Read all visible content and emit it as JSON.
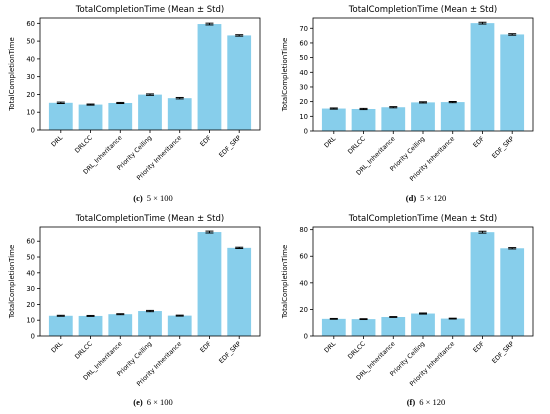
{
  "colors": {
    "bar": "#87ceeb",
    "error_bar": "#000000",
    "axis": "#000000",
    "background": "#ffffff"
  },
  "chart_data": [
    {
      "type": "bar",
      "title": "TotalCompletionTime (Mean ± Std)",
      "ylabel": "TotalCompletionTime",
      "xlabel": "",
      "caption_label": "(c)",
      "caption_text": "5 × 100",
      "categories": [
        "DRL",
        "DRLCC",
        "DRL_Inheritance",
        "Priority Ceiling",
        "Priority Inheritance",
        "EDF",
        "EDF_SRP"
      ],
      "values": [
        15.3,
        14.3,
        15.2,
        19.9,
        17.9,
        59.6,
        53.2
      ],
      "errors": [
        0.4,
        0.3,
        0.3,
        0.4,
        0.4,
        0.5,
        0.4
      ],
      "ylim": [
        0,
        63
      ],
      "yticks": [
        0,
        10,
        20,
        30,
        40,
        50,
        60
      ],
      "grid": false,
      "legend": false
    },
    {
      "type": "bar",
      "title": "TotalCompletionTime (Mean ± Std)",
      "ylabel": "TotalCompletionTime",
      "xlabel": "",
      "caption_label": "(d)",
      "caption_text": "5 × 120",
      "categories": [
        "DRL",
        "DRLCC",
        "DRL_Inheritance",
        "Priority Ceiling",
        "Priority Inheritance",
        "EDF",
        "EDF_SRP"
      ],
      "values": [
        15.3,
        15.0,
        16.2,
        19.5,
        19.7,
        73.5,
        65.8
      ],
      "errors": [
        0.4,
        0.4,
        0.4,
        0.4,
        0.4,
        0.6,
        0.5
      ],
      "ylim": [
        0,
        77
      ],
      "yticks": [
        0,
        10,
        20,
        30,
        40,
        50,
        60,
        70
      ],
      "grid": false,
      "legend": false
    },
    {
      "type": "bar",
      "title": "TotalCompletionTime (Mean ± Std)",
      "ylabel": "TotalCompletionTime",
      "xlabel": "",
      "caption_label": "(e)",
      "caption_text": "6 × 100",
      "categories": [
        "DRL",
        "DRLCC",
        "DRL_Inheritance",
        "Priority Ceiling",
        "Priority Inheritance",
        "EDF",
        "EDF_SRP"
      ],
      "values": [
        12.8,
        12.7,
        13.8,
        15.8,
        12.9,
        65.8,
        55.8
      ],
      "errors": [
        0.3,
        0.3,
        0.3,
        0.4,
        0.3,
        0.6,
        0.4
      ],
      "ylim": [
        0,
        69
      ],
      "yticks": [
        0,
        10,
        20,
        30,
        40,
        50,
        60
      ],
      "grid": false,
      "legend": false
    },
    {
      "type": "bar",
      "title": "TotalCompletionTime (Mean ± Std)",
      "ylabel": "TotalCompletionTime",
      "xlabel": "",
      "caption_label": "(f)",
      "caption_text": "6 × 120",
      "categories": [
        "DRL",
        "DRLCC",
        "DRL_Inheritance",
        "Priority Ceiling",
        "Priority Inheritance",
        "EDF",
        "EDF_SRP"
      ],
      "values": [
        12.9,
        12.7,
        14.3,
        16.9,
        13.1,
        78.1,
        66.0
      ],
      "errors": [
        0.3,
        0.3,
        0.3,
        0.4,
        0.3,
        0.7,
        0.5
      ],
      "ylim": [
        0,
        82
      ],
      "yticks": [
        0,
        20,
        40,
        60,
        80
      ],
      "grid": false,
      "legend": false
    }
  ]
}
